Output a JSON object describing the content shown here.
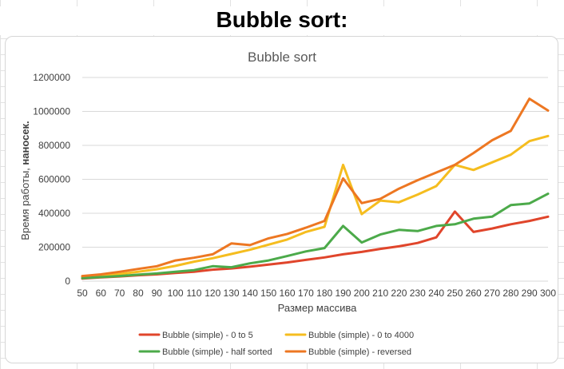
{
  "page": {
    "heading": "Bubble sort:"
  },
  "chart_data": {
    "type": "line",
    "title": "Bubble sort",
    "xlabel": "Размер массива",
    "ylabel_regular": "Время работы, ",
    "ylabel_bold": "наносек.",
    "ylim": [
      0,
      1200000
    ],
    "yticks": [
      0,
      200000,
      400000,
      600000,
      800000,
      1000000,
      1200000
    ],
    "ytick_labels": [
      "0",
      "200000",
      "400000",
      "600000",
      "800000",
      "1000000",
      "1200000"
    ],
    "categories": [
      "50",
      "60",
      "70",
      "80",
      "90",
      "100",
      "110",
      "120",
      "130",
      "140",
      "150",
      "160",
      "170",
      "180",
      "190",
      "200",
      "210",
      "220",
      "230",
      "240",
      "250",
      "260",
      "270",
      "280",
      "290",
      "300"
    ],
    "grid": true,
    "legend_position": "bottom",
    "series": [
      {
        "name": "Bubble (simple) - 0 to 5",
        "color": "#e0452b",
        "values": [
          15000,
          22000,
          28000,
          35000,
          40000,
          48000,
          55000,
          68000,
          75000,
          85000,
          98000,
          110000,
          125000,
          140000,
          158000,
          172000,
          190000,
          205000,
          225000,
          258000,
          410000,
          290000,
          310000,
          335000,
          355000,
          380000
        ]
      },
      {
        "name": "Bubble (simple) - 0 to 4000",
        "color": "#f5bd1f",
        "values": [
          25000,
          32000,
          42000,
          55000,
          70000,
          90000,
          115000,
          135000,
          160000,
          185000,
          215000,
          245000,
          290000,
          320000,
          685000,
          395000,
          475000,
          465000,
          510000,
          560000,
          685000,
          655000,
          700000,
          745000,
          825000,
          855000
        ]
      },
      {
        "name": "Bubble (simple) - half sorted",
        "color": "#4caa4a",
        "values": [
          18000,
          24000,
          30000,
          38000,
          45000,
          55000,
          65000,
          88000,
          82000,
          105000,
          122000,
          148000,
          175000,
          195000,
          325000,
          228000,
          275000,
          302000,
          295000,
          325000,
          335000,
          368000,
          380000,
          448000,
          458000,
          515000
        ]
      },
      {
        "name": "Bubble (simple) - reversed",
        "color": "#ed7722",
        "values": [
          30000,
          40000,
          55000,
          72000,
          88000,
          122000,
          138000,
          158000,
          222000,
          212000,
          252000,
          278000,
          315000,
          355000,
          605000,
          460000,
          485000,
          545000,
          595000,
          640000,
          685000,
          755000,
          830000,
          885000,
          1075000,
          1005000
        ]
      }
    ]
  }
}
